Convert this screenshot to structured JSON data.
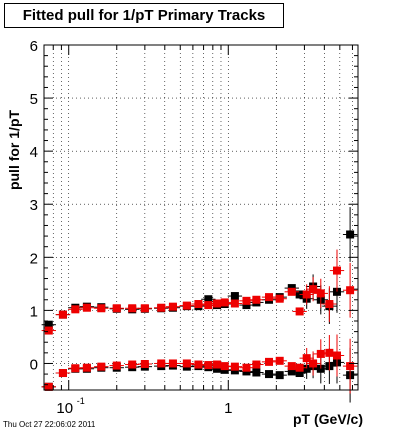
{
  "chart_data": {
    "type": "scatter",
    "title": "Fitted pull for 1/pT  Primary Tracks",
    "xlabel": "pT (GeV/c)",
    "ylabel": "pull for 1/pT",
    "x_scale": "log",
    "xlim": [
      0.07,
      6.5
    ],
    "ylim": [
      -0.5,
      6
    ],
    "y_ticks": [
      0,
      1,
      2,
      3,
      4,
      5,
      6
    ],
    "x_tick_labels": [
      {
        "value": 0.1,
        "base": "10",
        "exp": "-1"
      },
      {
        "value": 1,
        "text": "1"
      }
    ],
    "grid": true,
    "legend": "none",
    "series": [
      {
        "color": "#000000",
        "role": "width",
        "points": [
          [
            0.075,
            0.73
          ],
          [
            0.092,
            0.92
          ],
          [
            0.11,
            1.05
          ],
          [
            0.13,
            1.07
          ],
          [
            0.16,
            1.06
          ],
          [
            0.2,
            1.03
          ],
          [
            0.25,
            1.02
          ],
          [
            0.3,
            1.03
          ],
          [
            0.38,
            1.04
          ],
          [
            0.45,
            1.05
          ],
          [
            0.55,
            1.08
          ],
          [
            0.65,
            1.08
          ],
          [
            0.75,
            1.21
          ],
          [
            0.85,
            1.1
          ],
          [
            0.95,
            1.12
          ],
          [
            1.1,
            1.27
          ],
          [
            1.3,
            1.1
          ],
          [
            1.5,
            1.15
          ],
          [
            1.8,
            1.2
          ],
          [
            2.1,
            1.25
          ],
          [
            2.5,
            1.42
          ],
          [
            2.8,
            1.3
          ],
          [
            3.1,
            1.22
          ],
          [
            3.4,
            1.45
          ],
          [
            3.8,
            1.2
          ],
          [
            4.3,
            1.08
          ],
          [
            4.8,
            1.35
          ],
          [
            5.8,
            2.43
          ]
        ]
      },
      {
        "color": "#ee0000",
        "role": "width",
        "points": [
          [
            0.075,
            0.62
          ],
          [
            0.092,
            0.92
          ],
          [
            0.11,
            1.02
          ],
          [
            0.13,
            1.05
          ],
          [
            0.16,
            1.04
          ],
          [
            0.2,
            1.04
          ],
          [
            0.25,
            1.04
          ],
          [
            0.3,
            1.04
          ],
          [
            0.38,
            1.05
          ],
          [
            0.45,
            1.07
          ],
          [
            0.55,
            1.09
          ],
          [
            0.65,
            1.12
          ],
          [
            0.75,
            1.1
          ],
          [
            0.85,
            1.13
          ],
          [
            0.95,
            1.15
          ],
          [
            1.1,
            1.13
          ],
          [
            1.3,
            1.18
          ],
          [
            1.5,
            1.2
          ],
          [
            1.8,
            1.25
          ],
          [
            2.1,
            1.22
          ],
          [
            2.5,
            1.35
          ],
          [
            2.8,
            0.98
          ],
          [
            3.1,
            1.3
          ],
          [
            3.4,
            1.4
          ],
          [
            3.8,
            1.32
          ],
          [
            4.3,
            1.12
          ],
          [
            4.8,
            1.75
          ],
          [
            5.8,
            1.38
          ]
        ]
      },
      {
        "color": "#000000",
        "role": "mean",
        "points": [
          [
            0.075,
            -0.44
          ],
          [
            0.092,
            -0.18
          ],
          [
            0.11,
            -0.1
          ],
          [
            0.13,
            -0.1
          ],
          [
            0.16,
            -0.08
          ],
          [
            0.2,
            -0.08
          ],
          [
            0.25,
            -0.07
          ],
          [
            0.3,
            -0.06
          ],
          [
            0.38,
            -0.05
          ],
          [
            0.45,
            -0.04
          ],
          [
            0.55,
            -0.06
          ],
          [
            0.65,
            -0.05
          ],
          [
            0.75,
            -0.07
          ],
          [
            0.85,
            -0.1
          ],
          [
            0.95,
            -0.12
          ],
          [
            1.1,
            -0.13
          ],
          [
            1.3,
            -0.15
          ],
          [
            1.5,
            -0.17
          ],
          [
            1.8,
            -0.2
          ],
          [
            2.1,
            -0.22
          ],
          [
            2.5,
            -0.15
          ],
          [
            2.8,
            -0.18
          ],
          [
            3.1,
            -0.1
          ],
          [
            3.4,
            -0.05
          ],
          [
            3.8,
            -0.1
          ],
          [
            4.3,
            -0.05
          ],
          [
            4.8,
            0.02
          ],
          [
            5.8,
            -0.22
          ]
        ]
      },
      {
        "color": "#ee0000",
        "role": "mean",
        "points": [
          [
            0.075,
            -0.44
          ],
          [
            0.092,
            -0.18
          ],
          [
            0.11,
            -0.09
          ],
          [
            0.13,
            -0.08
          ],
          [
            0.16,
            -0.06
          ],
          [
            0.2,
            -0.04
          ],
          [
            0.25,
            -0.02
          ],
          [
            0.3,
            -0.01
          ],
          [
            0.38,
            0.0
          ],
          [
            0.45,
            0.0
          ],
          [
            0.55,
            0.0
          ],
          [
            0.65,
            -0.02
          ],
          [
            0.75,
            -0.03
          ],
          [
            0.85,
            -0.02
          ],
          [
            0.95,
            -0.05
          ],
          [
            1.1,
            -0.06
          ],
          [
            1.3,
            -0.08
          ],
          [
            1.5,
            -0.02
          ],
          [
            1.8,
            0.03
          ],
          [
            2.1,
            0.05
          ],
          [
            2.5,
            -0.05
          ],
          [
            2.8,
            -0.08
          ],
          [
            3.1,
            0.1
          ],
          [
            3.4,
            0.0
          ],
          [
            3.8,
            0.18
          ],
          [
            4.3,
            0.2
          ],
          [
            4.8,
            0.15
          ],
          [
            5.8,
            -0.05
          ]
        ]
      }
    ]
  },
  "footer": {
    "datestamp": "Thu Oct 27 22:06:02 2011"
  }
}
